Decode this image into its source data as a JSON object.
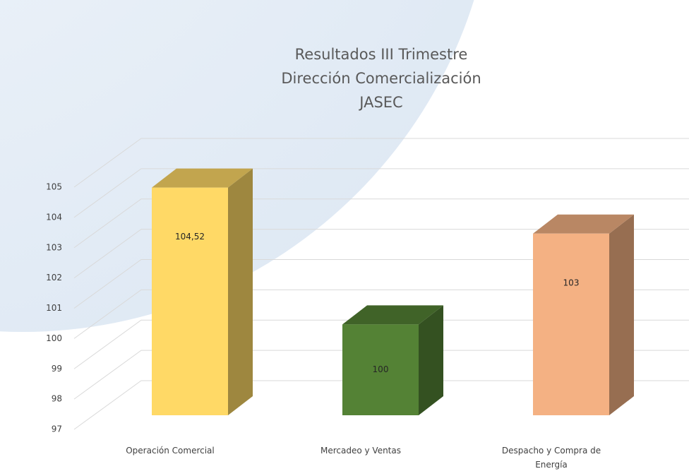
{
  "chart_data": {
    "type": "bar3d",
    "title": [
      "Resultados III Trimestre",
      "Dirección Comercialización",
      "JASEC"
    ],
    "categories": [
      "Operación Comercial",
      "Mercadeo y Ventas",
      "Despacho y Compra de Energía"
    ],
    "values": [
      104.52,
      100,
      103
    ],
    "value_labels": [
      "104,52",
      "100",
      "103"
    ],
    "colors": [
      "#ffd966",
      "#548235",
      "#f4b183"
    ],
    "ylim": [
      97,
      105
    ],
    "yticks": [
      97,
      98,
      99,
      100,
      101,
      102,
      103,
      104,
      105
    ],
    "grid": true
  }
}
